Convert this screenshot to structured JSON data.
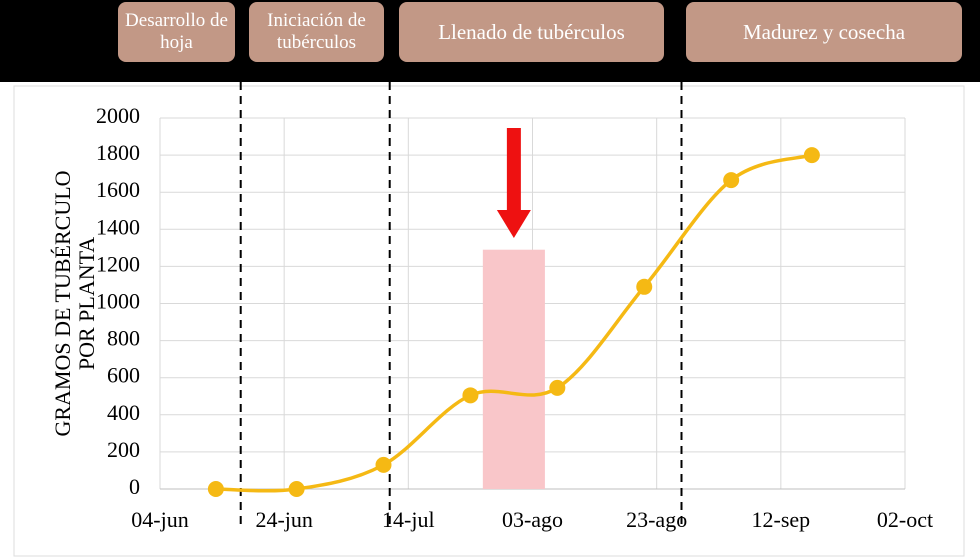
{
  "stages": [
    "Desarrollo de hoja",
    "Iniciación de tubérculos",
    "Llenado de tubérculos",
    "Madurez y cosecha"
  ],
  "chart_data": {
    "type": "line",
    "y_label_lines": [
      "GRAMOS DE TUBÉRCULO",
      "POR PLANTA"
    ],
    "x": [
      "13-jun",
      "26-jun",
      "10-jul",
      "24-jul",
      "07-ago",
      "21-ago",
      "04-sep",
      "17-sep"
    ],
    "series": [
      {
        "color": "#f5b914",
        "values": [
          0,
          0,
          130,
          505,
          545,
          1090,
          1665,
          1800
        ]
      }
    ],
    "xlim": [
      "04-jun",
      "02-oct"
    ],
    "xticks": [
      "04-jun",
      "24-jun",
      "14-jul",
      "03-ago",
      "23-ago",
      "12-sep",
      "02-oct"
    ],
    "ylim": [
      0,
      2000
    ],
    "yticks": [
      0,
      200,
      400,
      600,
      800,
      1000,
      1200,
      1400,
      1600,
      1800,
      2000
    ],
    "grid": true,
    "stage_boundaries": [
      "17-jun",
      "11-jul",
      "27-ago"
    ],
    "highlight": {
      "x": [
        "26-jul",
        "05-ago"
      ],
      "y": 1290,
      "color": "#f9c6c9"
    },
    "arrow_color": "#ee1111"
  }
}
